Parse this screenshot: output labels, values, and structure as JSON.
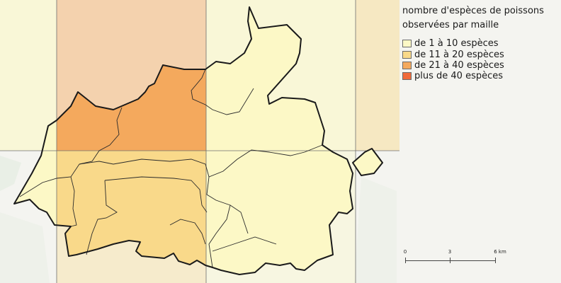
{
  "legend": {
    "title": "nombre d'espèces de poissons observées par maille",
    "items": [
      {
        "label": "de 1 à 10 espèces",
        "color": "#fcf8c6"
      },
      {
        "label": "de 11 à 20 espèces",
        "color": "#f9d98a"
      },
      {
        "label": "de 21 à 40 espèces",
        "color": "#f4a95d"
      },
      {
        "label": "plus de 40 espèces",
        "color": "#f06a3a"
      }
    ]
  },
  "scale": {
    "labels": [
      "0",
      "3",
      "6 km"
    ]
  },
  "map": {
    "colors": {
      "background": "#f2f2ee",
      "boundary": "#1a1a1a",
      "grid_line": "#6f6f6f"
    }
  }
}
